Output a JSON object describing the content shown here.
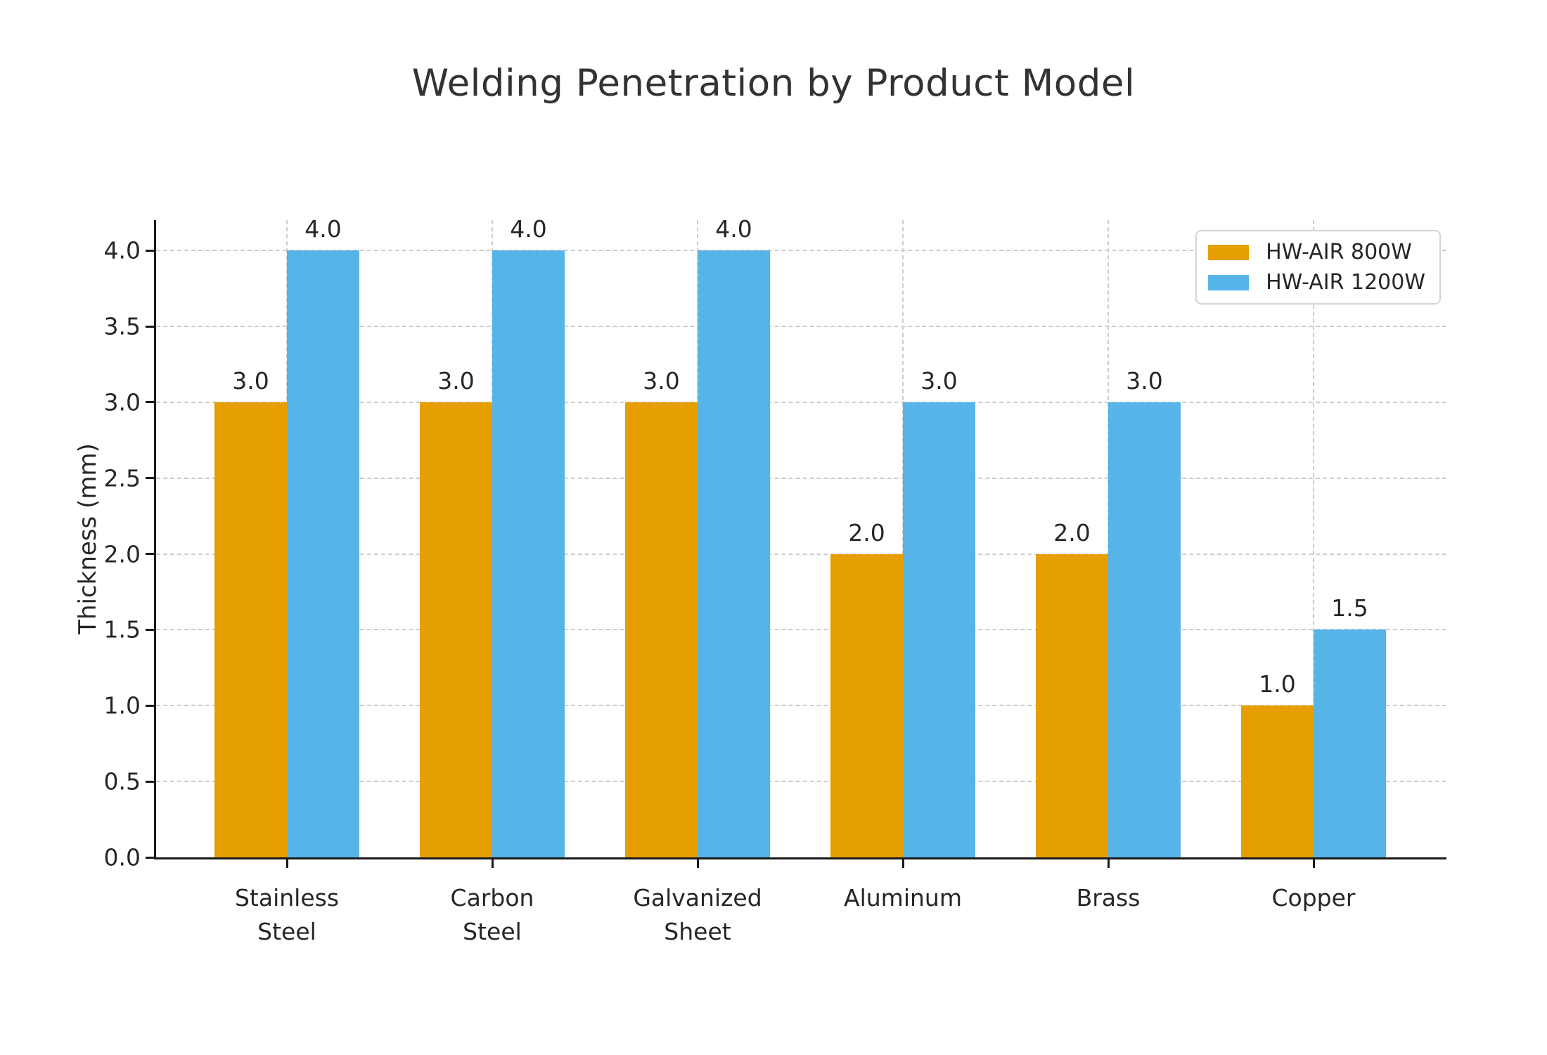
{
  "title": "Welding Penetration by Product Model",
  "chart_data": {
    "type": "bar",
    "title": "Welding Penetration by Product Model",
    "categories": [
      "Stainless Steel",
      "Carbon Steel",
      "Galvanized Sheet",
      "Aluminum",
      "Brass",
      "Copper"
    ],
    "category_tick_lines": [
      [
        "Stainless",
        "Steel"
      ],
      [
        "Carbon",
        "Steel"
      ],
      [
        "Galvanized",
        "Sheet"
      ],
      [
        "Aluminum"
      ],
      [
        "Brass"
      ],
      [
        "Copper"
      ]
    ],
    "series": [
      {
        "name": "HW-AIR 800W",
        "color": "#E69F00",
        "values": [
          3.0,
          3.0,
          3.0,
          2.0,
          2.0,
          1.0
        ]
      },
      {
        "name": "HW-AIR 1200W",
        "color": "#56B4E9",
        "values": [
          4.0,
          4.0,
          4.0,
          3.0,
          3.0,
          1.5
        ]
      }
    ],
    "xlabel": "",
    "ylabel": "Thickness (mm)",
    "ylim": [
      0,
      4.2
    ],
    "yticks": [
      0,
      0.5,
      1,
      1.5,
      2,
      2.5,
      3,
      3.5,
      4
    ],
    "ytick_labels": [
      "0.0",
      "0.5",
      "1.0",
      "1.5",
      "2.0",
      "2.5",
      "3.0",
      "3.5",
      "4.0"
    ],
    "grid": "both, dashed",
    "legend_position": "upper-right",
    "bar_value_labels": true,
    "value_label_format": "one-decimal"
  },
  "colors": {
    "background": "#FFFFFF",
    "bar_orange": "#E69F00",
    "bar_blue": "#56B4E9",
    "grid": "#CDCDCD",
    "axis": "#1A1A1A",
    "text": "#262626",
    "title_text": "#333333",
    "legend_border": "#D5D5D5"
  }
}
